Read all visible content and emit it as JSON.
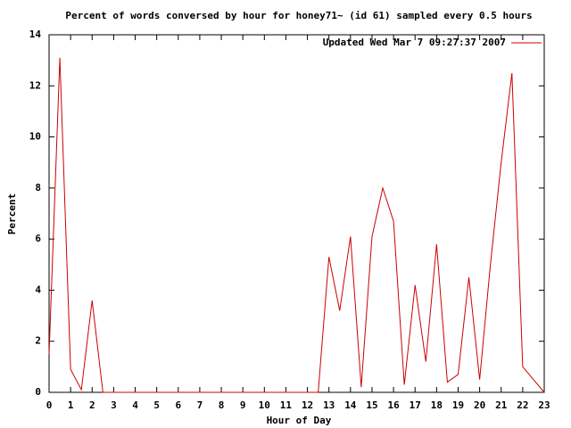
{
  "chart_data": {
    "type": "line",
    "title": "Percent of words conversed by hour for honey71~ (id 61) sampled every 0.5 hours",
    "x_label": "Hour of Day",
    "y_label": "Percent",
    "x": [
      0,
      0.5,
      1,
      1.5,
      2,
      2.5,
      3,
      3.5,
      4,
      4.5,
      5,
      5.5,
      6,
      6.5,
      7,
      7.5,
      8,
      8.5,
      9,
      9.5,
      10,
      10.5,
      11,
      11.5,
      12,
      12.5,
      13,
      13.5,
      14,
      14.5,
      15,
      15.5,
      16,
      16.5,
      17,
      17.5,
      18,
      18.5,
      19,
      19.5,
      20,
      20.5,
      21,
      21.5,
      22,
      22.5,
      23
    ],
    "series": [
      {
        "name": "Updated Wed Mar  7 09:27:37 2007",
        "color": "#cc0000",
        "values": [
          1.5,
          13.1,
          0.9,
          0.1,
          3.6,
          0,
          0,
          0,
          0,
          0,
          0,
          0,
          0,
          0,
          0,
          0,
          0,
          0,
          0,
          0,
          0,
          0,
          0,
          0,
          0,
          0,
          5.3,
          3.2,
          6.1,
          0.2,
          6.1,
          8.0,
          6.7,
          0.3,
          4.2,
          1.2,
          5.8,
          0.4,
          0.7,
          4.5,
          0.5,
          5.0,
          9.0,
          12.5,
          1.0,
          0.5,
          0.0
        ]
      }
    ],
    "xlim": [
      0,
      23
    ],
    "ylim": [
      0,
      14
    ],
    "xticks": [
      0,
      1,
      2,
      3,
      4,
      5,
      6,
      7,
      8,
      9,
      10,
      11,
      12,
      13,
      14,
      15,
      16,
      17,
      18,
      19,
      20,
      21,
      22,
      23
    ],
    "yticks": [
      0,
      2,
      4,
      6,
      8,
      10,
      12,
      14
    ],
    "legend": "top-right"
  }
}
